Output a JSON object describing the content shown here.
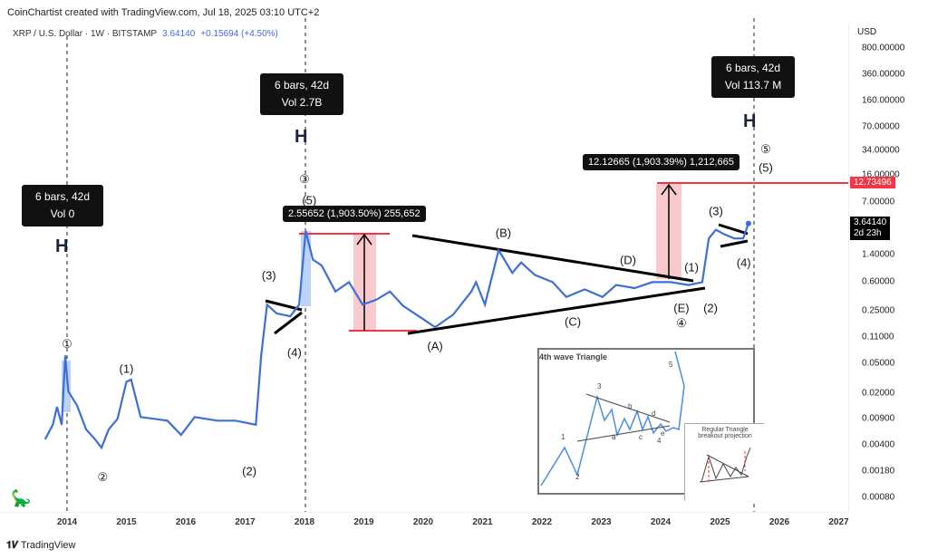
{
  "header": {
    "credit": "CoinChartist created with TradingView.com, Jul 18, 2025 03:10 UTC+2",
    "symbol": "XRP / U.S. Dollar · 1W · BITSTAMP",
    "last": "3.64140",
    "change": "+0.15694 (+4.50%)"
  },
  "axis": {
    "currency": "USD",
    "price_ticks": [
      "800.00000",
      "360.00000",
      "160.00000",
      "70.00000",
      "34.00000",
      "16.00000",
      "7.00000",
      "1.40000",
      "0.60000",
      "0.25000",
      "0.11000",
      "0.05000",
      "0.02000",
      "0.00900",
      "0.00400",
      "0.00180",
      "0.00080"
    ],
    "price_tag": "12.73496",
    "last_tag": "3.64140",
    "countdown": "2d 23h",
    "years": [
      "2014",
      "2015",
      "2016",
      "2017",
      "2018",
      "2019",
      "2020",
      "2021",
      "2022",
      "2023",
      "2024",
      "2025",
      "2026",
      "2027"
    ]
  },
  "boxes": [
    {
      "l1": "6 bars, 42d",
      "l2": "Vol 0"
    },
    {
      "l1": "6 bars, 42d",
      "l2": "Vol 2.7B"
    },
    {
      "l1": "6 bars, 42d",
      "l2": "Vol 113.7 M"
    }
  ],
  "measures": [
    "2.55652 (1,903.50%) 255,652",
    "12.12665 (1,903.39%) 1,212,665"
  ],
  "inset": {
    "title": "4th wave Triangle",
    "labels": [
      "1",
      "2",
      "3",
      "4",
      "5",
      "a",
      "b",
      "c",
      "d",
      "e"
    ],
    "sub_title": "Regular Triangle breakout projection"
  },
  "footer": {
    "brand": "TradingView"
  },
  "colors": {
    "line": "#3d6fd8",
    "red": "#f23645",
    "tag_bg": "#000000"
  },
  "chart_data": {
    "type": "line",
    "scale": "log",
    "ylim": [
      0.0006,
      1000
    ],
    "xlim": [
      2013.4,
      2027.2
    ],
    "x": [
      2013.63,
      2013.76,
      2013.83,
      2013.91,
      2013.97,
      2014.02,
      2014.17,
      2014.32,
      2014.47,
      2014.58,
      2014.7,
      2014.85,
      2015.0,
      2015.08,
      2015.24,
      2015.47,
      2015.69,
      2015.92,
      2016.15,
      2016.53,
      2016.84,
      2017.18,
      2017.27,
      2017.37,
      2017.53,
      2017.76,
      2017.91,
      2018.02,
      2018.14,
      2018.29,
      2018.52,
      2018.75,
      2018.98,
      2019.21,
      2019.44,
      2019.66,
      2019.97,
      2020.2,
      2020.5,
      2020.81,
      2020.89,
      2021.04,
      2021.27,
      2021.5,
      2021.65,
      2021.88,
      2022.18,
      2022.41,
      2022.72,
      2023.02,
      2023.25,
      2023.56,
      2023.86,
      2024.17,
      2024.47,
      2024.7,
      2024.81,
      2024.93,
      2025.08,
      2025.24,
      2025.39,
      2025.48
    ],
    "y": [
      0.0048,
      0.0075,
      0.013,
      0.0075,
      0.063,
      0.021,
      0.0135,
      0.0065,
      0.0048,
      0.0037,
      0.0065,
      0.009,
      0.028,
      0.03,
      0.0095,
      0.009,
      0.0085,
      0.0055,
      0.0095,
      0.0085,
      0.0085,
      0.0075,
      0.063,
      0.3,
      0.23,
      0.21,
      0.3,
      2.9,
      1.2,
      1.0,
      0.45,
      0.6,
      0.3,
      0.35,
      0.45,
      0.29,
      0.2,
      0.15,
      0.22,
      0.45,
      0.6,
      0.3,
      1.6,
      0.8,
      1.1,
      0.75,
      0.6,
      0.38,
      0.48,
      0.38,
      0.55,
      0.5,
      0.6,
      0.6,
      0.55,
      0.6,
      2.3,
      3.0,
      2.6,
      2.3,
      2.3,
      3.6414
    ],
    "annotations": [
      {
        "t": "①",
        "x": 2014.0,
        "y": 0.088
      },
      {
        "t": "②",
        "x": 2014.6,
        "y": 0.0015
      },
      {
        "t": "(1)",
        "x": 2015.0,
        "y": 0.042
      },
      {
        "t": "(2)",
        "x": 2017.07,
        "y": 0.0018
      },
      {
        "t": "(3)",
        "x": 2017.4,
        "y": 0.73
      },
      {
        "t": "(4)",
        "x": 2017.83,
        "y": 0.07
      },
      {
        "t": "③",
        "x": 2018.0,
        "y": 14
      },
      {
        "t": "(5)",
        "x": 2018.08,
        "y": 7.5
      },
      {
        "t": "(A)",
        "x": 2020.2,
        "y": 0.085
      },
      {
        "t": "(B)",
        "x": 2021.35,
        "y": 2.7
      },
      {
        "t": "(C)",
        "x": 2022.52,
        "y": 0.18
      },
      {
        "t": "(D)",
        "x": 2023.45,
        "y": 1.2
      },
      {
        "t": "(E)",
        "x": 2024.35,
        "y": 0.27
      },
      {
        "t": "④",
        "x": 2024.35,
        "y": 0.17
      },
      {
        "t": "(1)",
        "x": 2024.52,
        "y": 0.95
      },
      {
        "t": "(2)",
        "x": 2024.84,
        "y": 0.27
      },
      {
        "t": "(3)",
        "x": 2024.93,
        "y": 5.4
      },
      {
        "t": "(4)",
        "x": 2025.4,
        "y": 1.1
      },
      {
        "t": "⑤",
        "x": 2025.77,
        "y": 35
      },
      {
        "t": "(5)",
        "x": 2025.77,
        "y": 20
      }
    ]
  }
}
